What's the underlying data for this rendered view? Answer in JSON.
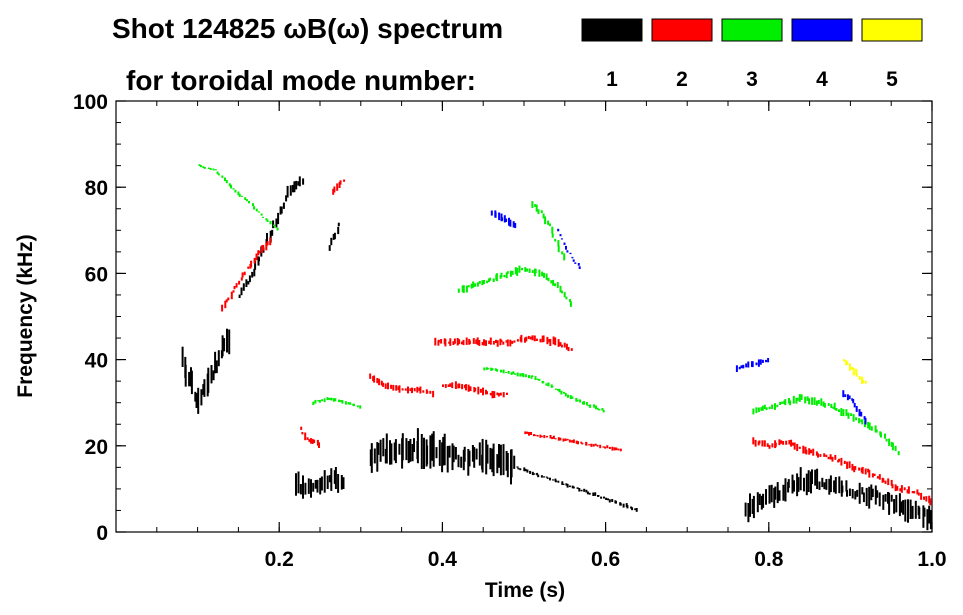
{
  "chart_data": {
    "type": "spectrogram",
    "title_line1": "Shot 124825 ωB(ω) spectrum",
    "title_line2": "for toroidal mode number:",
    "xlabel": "Time (s)",
    "ylabel": "Frequency (kHz)",
    "xlim": [
      0.0,
      1.0
    ],
    "ylim": [
      0,
      100
    ],
    "x_ticks": [
      0.2,
      0.4,
      0.6,
      0.8,
      1.0
    ],
    "x_tick_labels": [
      "0.2",
      "0.4",
      "0.6",
      "0.8",
      "1.0"
    ],
    "y_ticks": [
      0,
      20,
      40,
      60,
      80,
      100
    ],
    "y_tick_labels": [
      "0",
      "20",
      "40",
      "60",
      "80",
      "100"
    ],
    "legend": [
      {
        "label": "1",
        "color": "#000000"
      },
      {
        "label": "2",
        "color": "#ff0000"
      },
      {
        "label": "3",
        "color": "#00ee00"
      },
      {
        "label": "4",
        "color": "#0000ff"
      },
      {
        "label": "5",
        "color": "#ffff00"
      }
    ],
    "series": [
      {
        "name": "n=1",
        "mode": 1,
        "segments": [
          {
            "x": [
              0.08,
              0.09,
              0.1,
              0.11,
              0.12,
              0.13,
              0.14
            ],
            "y": [
              40,
              35,
              30,
              34,
              38,
              42,
              45
            ],
            "w": 7,
            "spread": 10
          },
          {
            "x": [
              0.15,
              0.16,
              0.17,
              0.18,
              0.19,
              0.2,
              0.21
            ],
            "y": [
              55,
              58,
              62,
              66,
              70,
              74,
              78
            ],
            "w": 3,
            "spread": 5
          },
          {
            "x": [
              0.21,
              0.22,
              0.23
            ],
            "y": [
              79,
              80,
              82
            ],
            "w": 3,
            "spread": 3
          },
          {
            "x": [
              0.22,
              0.24,
              0.26,
              0.28
            ],
            "y": [
              11,
              10,
              12,
              12
            ],
            "w": 6,
            "spread": 5
          },
          {
            "x": [
              0.26,
              0.265,
              0.27,
              0.275
            ],
            "y": [
              66,
              68,
              70,
              72
            ],
            "w": 2,
            "spread": 3
          },
          {
            "x": [
              0.31,
              0.34,
              0.37,
              0.4,
              0.43,
              0.46,
              0.49
            ],
            "y": [
              18,
              19,
              19,
              18,
              17,
              17,
              16
            ],
            "w": 9,
            "spread": 8
          },
          {
            "x": [
              0.49,
              0.52,
              0.55,
              0.58,
              0.61,
              0.64
            ],
            "y": [
              15,
              13,
              11,
              9,
              7,
              5
            ],
            "w": 1,
            "spread": 1
          },
          {
            "x": [
              0.77,
              0.79,
              0.81,
              0.83,
              0.85,
              0.87,
              0.89,
              0.91,
              0.93,
              0.95,
              0.97,
              0.99,
              1.0
            ],
            "y": [
              5,
              7,
              9,
              11,
              12,
              11,
              10,
              9,
              8,
              7,
              5,
              4,
              3
            ],
            "w": 6,
            "spread": 6
          }
        ]
      },
      {
        "name": "n=2",
        "mode": 2,
        "segments": [
          {
            "x": [
              0.13,
              0.14,
              0.15,
              0.16,
              0.17,
              0.18,
              0.19
            ],
            "y": [
              52,
              55,
              58,
              61,
              64,
              66,
              68
            ],
            "w": 2,
            "spread": 2
          },
          {
            "x": [
              0.225,
              0.23,
              0.24,
              0.25
            ],
            "y": [
              24,
              22,
              21,
              20
            ],
            "w": 2,
            "spread": 2
          },
          {
            "x": [
              0.265,
              0.27,
              0.275,
              0.28
            ],
            "y": [
              79,
              80,
              81,
              82
            ],
            "w": 2,
            "spread": 1
          },
          {
            "x": [
              0.31,
              0.33,
              0.35,
              0.37,
              0.39
            ],
            "y": [
              36,
              34,
              33,
              33,
              32
            ],
            "w": 2,
            "spread": 1
          },
          {
            "x": [
              0.4,
              0.42,
              0.44,
              0.46,
              0.48
            ],
            "y": [
              34,
              34,
              33,
              32,
              32
            ],
            "w": 2,
            "spread": 1
          },
          {
            "x": [
              0.39,
              0.42,
              0.45,
              0.48,
              0.51,
              0.54,
              0.56
            ],
            "y": [
              44,
              44,
              44,
              44,
              45,
              44,
              42
            ],
            "w": 2,
            "spread": 2
          },
          {
            "x": [
              0.5,
              0.53,
              0.56,
              0.59,
              0.62
            ],
            "y": [
              23,
              22,
              21,
              20,
              19
            ],
            "w": 1,
            "spread": 1
          },
          {
            "x": [
              0.78,
              0.8,
              0.82,
              0.84,
              0.86,
              0.88,
              0.9,
              0.92,
              0.94,
              0.96,
              0.98,
              1.0
            ],
            "y": [
              21,
              20,
              21,
              19,
              18,
              17,
              15,
              14,
              12,
              10,
              9,
              7
            ],
            "w": 2,
            "spread": 2
          }
        ]
      },
      {
        "name": "n=3",
        "mode": 3,
        "segments": [
          {
            "x": [
              0.1,
              0.12,
              0.14,
              0.16,
              0.18,
              0.2
            ],
            "y": [
              85,
              84,
              80,
              77,
              73,
              70
            ],
            "w": 1,
            "spread": 1
          },
          {
            "x": [
              0.24,
              0.26,
              0.28,
              0.3
            ],
            "y": [
              30,
              31,
              30,
              29
            ],
            "w": 1,
            "spread": 1
          },
          {
            "x": [
              0.42,
              0.45,
              0.48,
              0.5,
              0.52,
              0.54,
              0.56
            ],
            "y": [
              56,
              58,
              60,
              61,
              60,
              57,
              52
            ],
            "w": 2,
            "spread": 2
          },
          {
            "x": [
              0.51,
              0.52,
              0.53,
              0.54,
              0.55
            ],
            "y": [
              76,
              74,
              71,
              67,
              63
            ],
            "w": 2,
            "spread": 2
          },
          {
            "x": [
              0.45,
              0.48,
              0.51,
              0.54,
              0.57,
              0.6
            ],
            "y": [
              38,
              37,
              36,
              33,
              30,
              28
            ],
            "w": 1,
            "spread": 1
          },
          {
            "x": [
              0.78,
              0.8,
              0.82,
              0.84,
              0.86,
              0.88,
              0.9,
              0.92,
              0.94,
              0.96
            ],
            "y": [
              28,
              29,
              30,
              31,
              30,
              29,
              27,
              25,
              22,
              18
            ],
            "w": 2,
            "spread": 2
          }
        ]
      },
      {
        "name": "n=4",
        "mode": 4,
        "segments": [
          {
            "x": [
              0.46,
              0.47,
              0.48,
              0.49
            ],
            "y": [
              74,
              73,
              72,
              71
            ],
            "w": 2,
            "spread": 1
          },
          {
            "x": [
              0.54,
              0.55,
              0.56,
              0.57
            ],
            "y": [
              70,
              66,
              63,
              61
            ],
            "w": 1,
            "spread": 1
          },
          {
            "x": [
              0.76,
              0.78,
              0.8
            ],
            "y": [
              38,
              39,
              40
            ],
            "w": 2,
            "spread": 1
          },
          {
            "x": [
              0.89,
              0.9,
              0.91,
              0.92
            ],
            "y": [
              32,
              31,
              28,
              25
            ],
            "w": 2,
            "spread": 2
          }
        ]
      },
      {
        "name": "n=5",
        "mode": 5,
        "segments": [
          {
            "x": [
              0.89,
              0.9,
              0.91,
              0.92
            ],
            "y": [
              40,
              38,
              36,
              34
            ],
            "w": 2,
            "spread": 2
          }
        ]
      }
    ]
  }
}
